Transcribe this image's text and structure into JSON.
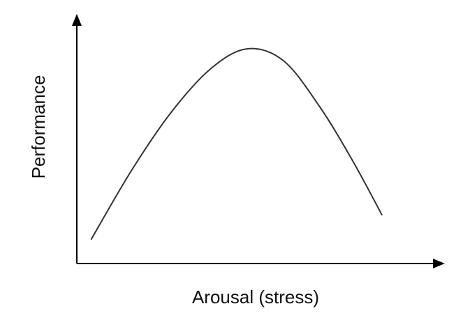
{
  "chart_data": {
    "type": "line",
    "title": "",
    "xlabel": "Arousal (stress)",
    "ylabel": "Performance",
    "x_ticks": [],
    "y_ticks": [],
    "grid": false,
    "legend": "none",
    "colors": {
      "axis": "#000000",
      "curve": "#333333",
      "background": "#ffffff"
    },
    "series": [
      {
        "points": [
          {
            "x": 0.04,
            "y": 0.1
          },
          {
            "x": 0.15,
            "y": 0.38
          },
          {
            "x": 0.26,
            "y": 0.62
          },
          {
            "x": 0.37,
            "y": 0.8
          },
          {
            "x": 0.47,
            "y": 0.88
          },
          {
            "x": 0.57,
            "y": 0.83
          },
          {
            "x": 0.67,
            "y": 0.64
          },
          {
            "x": 0.76,
            "y": 0.42
          },
          {
            "x": 0.84,
            "y": 0.2
          }
        ]
      }
    ]
  }
}
